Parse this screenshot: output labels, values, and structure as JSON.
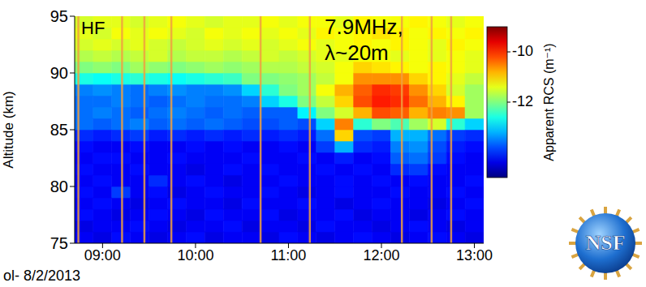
{
  "chart_data": {
    "type": "heatmap",
    "annotations": [
      "HF",
      "7.9MHz,",
      "λ~20m"
    ],
    "footer": "ol- 8/2/2013",
    "logo": "NSF",
    "y_label": "Altitude (km)",
    "xlim": [
      8.7,
      13.1
    ],
    "xticks": [
      {
        "value": 9,
        "label": "09:00"
      },
      {
        "value": 10,
        "label": "10:00"
      },
      {
        "value": 11,
        "label": "11:00"
      },
      {
        "value": 12,
        "label": "12:00"
      },
      {
        "value": 13,
        "label": "13:00"
      }
    ],
    "ylim": [
      75,
      95
    ],
    "yticks": [
      75,
      80,
      85,
      90,
      95
    ],
    "x_edges": [
      8.7,
      8.9,
      9.1,
      9.3,
      9.5,
      9.7,
      9.9,
      10.1,
      10.3,
      10.5,
      10.7,
      10.9,
      11.1,
      11.3,
      11.5,
      11.7,
      11.9,
      12.1,
      12.3,
      12.5,
      12.7,
      12.9,
      13.1
    ],
    "y_edges": [
      75,
      76,
      77,
      78,
      79,
      80,
      81,
      82,
      83,
      84,
      85,
      86,
      87,
      88,
      89,
      90,
      91,
      92,
      93,
      94,
      95
    ],
    "z": [
      [
        -14.3,
        -14.4,
        -14.2,
        -14.3,
        -14.4,
        -14.3,
        -14.2,
        -14.4,
        -14.3,
        -14.3,
        -14.4,
        -14.2,
        -14.3,
        -14.4,
        -14.3,
        -14.2,
        -14.3,
        -14.4,
        -14.3,
        -14.2,
        -14.3,
        -14.4
      ],
      [
        -14.4,
        -14.3,
        -14.3,
        -14.2,
        -14.3,
        -14.4,
        -14.3,
        -14.3,
        -14.2,
        -14.4,
        -14.3,
        -14.3,
        -14.4,
        -14.2,
        -14.3,
        -14.3,
        -14.4,
        -14.3,
        -14.2,
        -14.3,
        -14.4,
        -14.3
      ],
      [
        -14.2,
        -14.3,
        -14.4,
        -14.3,
        -14.2,
        -14.3,
        -14.4,
        -14.2,
        -14.3,
        -14.3,
        -14.2,
        -14.4,
        -14.3,
        -14.3,
        -14.2,
        -14.4,
        -14.3,
        -14.3,
        -14.4,
        -14.3,
        -14.2,
        -14.3
      ],
      [
        -14.3,
        -14.2,
        -14.3,
        -14.4,
        -14.3,
        -14.2,
        -14.3,
        -14.3,
        -14.4,
        -14.2,
        -14.3,
        -14.3,
        -14.2,
        -14.3,
        -14.4,
        -14.3,
        -14.2,
        -14.3,
        -14.3,
        -14.4,
        -14.3,
        -14.2
      ],
      [
        -14.2,
        -14.3,
        -13.9,
        -14.3,
        -14.2,
        -14.4,
        -14.3,
        -14.2,
        -14.3,
        -14.3,
        -14.2,
        -14.3,
        -14.4,
        -14.3,
        -14.2,
        -14.3,
        -14.3,
        -14.2,
        -14.3,
        -14.3,
        -14.2,
        -14.3
      ],
      [
        -14.3,
        -14.2,
        -14.3,
        -14.3,
        -14.0,
        -14.3,
        -14.2,
        -14.3,
        -14.4,
        -14.3,
        -14.3,
        -14.2,
        -14.3,
        -14.3,
        -14.2,
        -14.3,
        -14.2,
        -14.3,
        -14.2,
        -14.3,
        -14.3,
        -14.2
      ],
      [
        -14.2,
        -14.3,
        -14.3,
        -14.2,
        -14.3,
        -14.3,
        -14.4,
        -14.3,
        -14.2,
        -14.3,
        -14.2,
        -14.3,
        -14.3,
        -14.2,
        -14.3,
        -14.2,
        -14.3,
        -14.0,
        -13.9,
        -14.2,
        -14.3,
        -14.3
      ],
      [
        -14.3,
        -14.2,
        -14.2,
        -14.3,
        -14.3,
        -14.2,
        -14.3,
        -14.3,
        -14.3,
        -14.2,
        -14.3,
        -14.3,
        -14.2,
        -14.3,
        -14.1,
        -14.3,
        -14.2,
        -13.7,
        -13.6,
        -13.9,
        -14.2,
        -14.3
      ],
      [
        -14.2,
        -14.3,
        -14.3,
        -14.2,
        -14.3,
        -14.3,
        -14.2,
        -14.3,
        -14.2,
        -14.3,
        -14.3,
        -14.2,
        -14.3,
        -13.9,
        -13.2,
        -14.0,
        -14.1,
        -13.5,
        -13.4,
        -13.8,
        -14.1,
        -14.2
      ],
      [
        -14.0,
        -14.1,
        -14.0,
        -13.9,
        -14.1,
        -14.0,
        -14.1,
        -14.0,
        -14.1,
        -14.0,
        -14.1,
        -14.0,
        -14.1,
        -13.6,
        -11.0,
        -13.8,
        -13.9,
        -13.2,
        -13.2,
        -13.6,
        -13.9,
        -14.0
      ],
      [
        -13.6,
        -13.7,
        -13.6,
        -13.5,
        -13.7,
        -13.6,
        -13.7,
        -13.6,
        -13.7,
        -13.8,
        -13.8,
        -13.7,
        -13.8,
        -13.0,
        -10.5,
        -12.5,
        -12.0,
        -12.3,
        -11.8,
        -11.5,
        -12.5,
        -13.0
      ],
      [
        -13.6,
        -13.5,
        -13.6,
        -13.7,
        -13.6,
        -13.5,
        -13.6,
        -13.7,
        -13.6,
        -13.7,
        -13.7,
        -13.7,
        -12.8,
        -12.0,
        -11.5,
        -10.8,
        -10.2,
        -10.3,
        -10.8,
        -10.5,
        -10.6,
        -11.8
      ],
      [
        -13.6,
        -13.6,
        -13.5,
        -13.6,
        -13.7,
        -13.6,
        -13.5,
        -13.6,
        -13.6,
        -13.5,
        -13.0,
        -12.6,
        -12.0,
        -11.6,
        -11.0,
        -10.2,
        -9.9,
        -10.0,
        -10.4,
        -10.8,
        -11.2,
        -11.8
      ],
      [
        -13.5,
        -13.4,
        -13.5,
        -13.6,
        -13.5,
        -13.4,
        -13.5,
        -13.5,
        -13.4,
        -13.0,
        -12.5,
        -12.0,
        -11.8,
        -11.3,
        -10.8,
        -10.3,
        -10.0,
        -10.1,
        -10.6,
        -11.0,
        -11.5,
        -11.8
      ],
      [
        -12.6,
        -12.7,
        -12.6,
        -12.5,
        -12.6,
        -12.7,
        -12.6,
        -12.5,
        -12.4,
        -12.0,
        -12.0,
        -11.9,
        -11.8,
        -11.6,
        -11.3,
        -10.6,
        -10.6,
        -10.6,
        -11.0,
        -11.2,
        -11.4,
        -11.6
      ],
      [
        -12.0,
        -11.9,
        -12.0,
        -11.8,
        -11.9,
        -12.0,
        -11.9,
        -11.8,
        -11.9,
        -11.8,
        -11.7,
        -11.7,
        -11.6,
        -11.5,
        -11.3,
        -11.0,
        -11.1,
        -11.2,
        -11.3,
        -11.2,
        -11.3,
        -11.4
      ],
      [
        -11.7,
        -11.6,
        -11.7,
        -11.6,
        -11.5,
        -11.7,
        -11.6,
        -11.6,
        -11.7,
        -11.6,
        -11.5,
        -11.6,
        -11.5,
        -11.4,
        -11.4,
        -11.3,
        -11.3,
        -11.4,
        -11.3,
        -11.4,
        -11.3,
        -11.4
      ],
      [
        -11.5,
        -11.4,
        -11.5,
        -11.4,
        -11.5,
        -11.6,
        -11.5,
        -11.4,
        -11.5,
        -11.4,
        -11.5,
        -11.4,
        -11.3,
        -11.4,
        -11.3,
        -11.2,
        -11.3,
        -11.2,
        -11.3,
        -11.4,
        -11.2,
        -11.3
      ],
      [
        -11.4,
        -11.5,
        -11.3,
        -11.4,
        -11.3,
        -11.4,
        -11.5,
        -11.3,
        -11.4,
        -11.3,
        -11.4,
        -11.3,
        -11.4,
        -11.2,
        -11.3,
        -11.2,
        -11.1,
        -11.2,
        -11.3,
        -11.2,
        -11.3,
        -11.2
      ],
      [
        -11.5,
        -11.4,
        -11.4,
        -11.5,
        -11.4,
        -11.3,
        -11.4,
        -11.5,
        -11.4,
        -11.4,
        -11.3,
        -11.4,
        -11.3,
        -11.3,
        -11.4,
        -11.2,
        -11.3,
        -11.3,
        -11.2,
        -11.3,
        -11.4,
        -11.3
      ]
    ],
    "interference_times": [
      8.74,
      9.21,
      9.45,
      9.74,
      10.7,
      11.23,
      12.22,
      12.54,
      12.75
    ],
    "colorbar": {
      "label": "Apparent RCS (m⁻¹)",
      "range": [
        -15,
        -9
      ],
      "ticks": [
        -12,
        -10
      ]
    }
  }
}
